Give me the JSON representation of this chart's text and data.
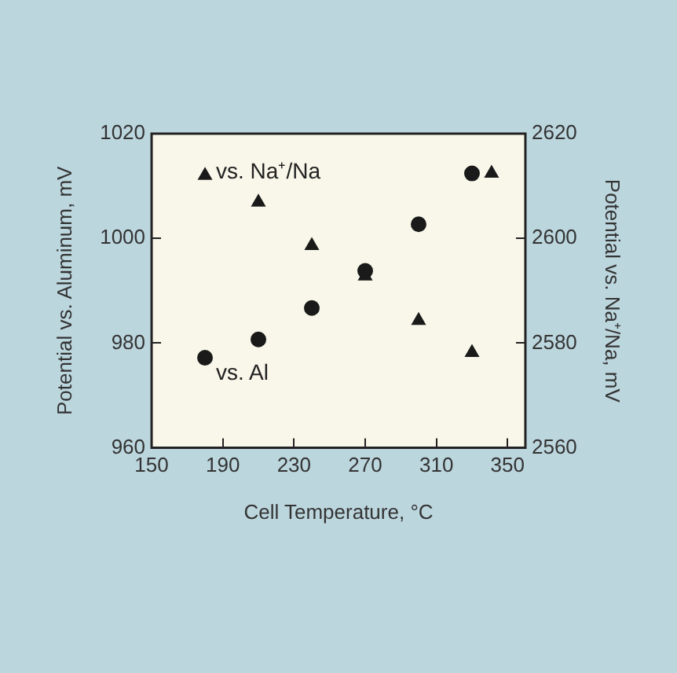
{
  "chart_data": {
    "type": "scatter",
    "xlabel": "Cell Temperature, °C",
    "ylabel": "Potential vs. Aluminum, mV",
    "y2label": "Potential vs. Na⁺/Na, mV",
    "xlim": [
      150,
      360
    ],
    "xticks": [
      150,
      190,
      230,
      270,
      310,
      350
    ],
    "ylim": [
      960,
      1020
    ],
    "yticks": [
      960,
      980,
      1000,
      1020
    ],
    "y2lim": [
      2560,
      2620
    ],
    "y2ticks": [
      2560,
      2580,
      2600,
      2620
    ],
    "grid": false,
    "legend": false,
    "series": [
      {
        "name": "vs. Al",
        "color": "#1a1a1a",
        "marker": "circle",
        "x": [
          180,
          210,
          240,
          270,
          300,
          330
        ],
        "values": [
          977.2,
          980.7,
          986.7,
          993.8,
          1002.7,
          1012.4
        ]
      },
      {
        "name": "vs. Na⁺/Na",
        "color": "#1a1a1a",
        "marker": "triangle",
        "axis": "y2",
        "x": [
          180,
          210,
          240,
          270,
          300,
          330,
          341
        ],
        "values": [
          2612,
          2606.9,
          2598.6,
          2592.8,
          2584.3,
          2578.2,
          2612.4
        ]
      }
    ]
  }
}
